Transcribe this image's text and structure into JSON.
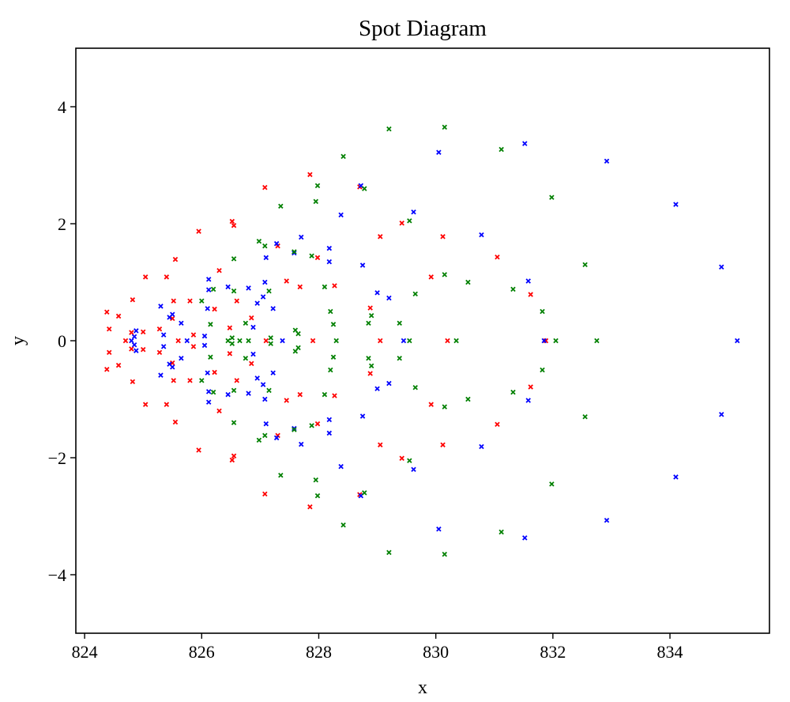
{
  "chart_data": {
    "type": "scatter",
    "title": "Spot Diagram",
    "xlabel": "x",
    "ylabel": "y",
    "xlim": [
      823.85,
      835.7
    ],
    "ylim": [
      -5,
      5
    ],
    "xticks": [
      824,
      826,
      828,
      830,
      832,
      834
    ],
    "yticks": [
      -4,
      -2,
      0,
      2,
      4
    ],
    "xtick_labels": [
      "824",
      "826",
      "828",
      "830",
      "832",
      "834"
    ],
    "ytick_labels": [
      "−4",
      "−2",
      "0",
      "2",
      "4"
    ],
    "grid": false,
    "legend": "none",
    "marker": "x",
    "series": [
      {
        "color": "#ff0000",
        "points": [
          [
            824.38,
            0.49
          ],
          [
            824.38,
            -0.49
          ],
          [
            824.42,
            0.2
          ],
          [
            824.42,
            -0.2
          ],
          [
            824.58,
            0.42
          ],
          [
            824.58,
            -0.42
          ],
          [
            824.7,
            0.0
          ],
          [
            824.8,
            0.14
          ],
          [
            824.8,
            -0.14
          ],
          [
            824.82,
            0.7
          ],
          [
            824.82,
            -0.7
          ],
          [
            825.0,
            0.15
          ],
          [
            825.0,
            -0.15
          ],
          [
            825.04,
            1.09
          ],
          [
            825.04,
            -1.09
          ],
          [
            825.28,
            0.2
          ],
          [
            825.28,
            -0.2
          ],
          [
            825.4,
            1.09
          ],
          [
            825.4,
            -1.09
          ],
          [
            825.5,
            0.38
          ],
          [
            825.5,
            -0.38
          ],
          [
            825.52,
            0.68
          ],
          [
            825.52,
            -0.68
          ],
          [
            825.55,
            1.39
          ],
          [
            825.55,
            -1.39
          ],
          [
            825.6,
            0.0
          ],
          [
            825.8,
            0.68
          ],
          [
            825.8,
            -0.68
          ],
          [
            825.86,
            0.1
          ],
          [
            825.86,
            -0.1
          ],
          [
            825.95,
            1.87
          ],
          [
            825.95,
            -1.87
          ],
          [
            826.22,
            0.54
          ],
          [
            826.22,
            -0.54
          ],
          [
            826.3,
            1.2
          ],
          [
            826.3,
            -1.2
          ],
          [
            826.48,
            0.22
          ],
          [
            826.48,
            -0.22
          ],
          [
            826.52,
            2.04
          ],
          [
            826.52,
            -2.04
          ],
          [
            826.55,
            1.97
          ],
          [
            826.55,
            -1.97
          ],
          [
            826.6,
            0.68
          ],
          [
            826.6,
            -0.68
          ],
          [
            826.85,
            0.39
          ],
          [
            826.85,
            -0.39
          ],
          [
            827.08,
            2.62
          ],
          [
            827.08,
            -2.62
          ],
          [
            827.1,
            0.0
          ],
          [
            827.3,
            1.62
          ],
          [
            827.3,
            -1.62
          ],
          [
            827.45,
            1.02
          ],
          [
            827.45,
            -1.02
          ],
          [
            827.68,
            0.92
          ],
          [
            827.68,
            -0.92
          ],
          [
            827.85,
            2.84
          ],
          [
            827.85,
            -2.84
          ],
          [
            827.9,
            0.0
          ],
          [
            827.98,
            1.42
          ],
          [
            827.98,
            -1.42
          ],
          [
            828.27,
            0.94
          ],
          [
            828.27,
            -0.94
          ],
          [
            828.7,
            2.63
          ],
          [
            828.7,
            -2.63
          ],
          [
            828.88,
            0.56
          ],
          [
            828.88,
            -0.56
          ],
          [
            829.05,
            0.0
          ],
          [
            829.05,
            1.78
          ],
          [
            829.05,
            -1.78
          ],
          [
            829.42,
            2.01
          ],
          [
            829.42,
            -2.01
          ],
          [
            829.92,
            1.09
          ],
          [
            829.92,
            -1.09
          ],
          [
            830.12,
            1.78
          ],
          [
            830.12,
            -1.78
          ],
          [
            830.2,
            0.0
          ],
          [
            831.05,
            1.43
          ],
          [
            831.05,
            -1.43
          ],
          [
            831.62,
            0.79
          ],
          [
            831.62,
            -0.79
          ],
          [
            831.88,
            0.0
          ]
        ]
      },
      {
        "color": "#0000ff",
        "points": [
          [
            824.8,
            0.0
          ],
          [
            824.85,
            0.07
          ],
          [
            824.85,
            -0.07
          ],
          [
            824.88,
            0.17
          ],
          [
            824.88,
            -0.17
          ],
          [
            825.3,
            0.59
          ],
          [
            825.3,
            -0.59
          ],
          [
            825.35,
            0.1
          ],
          [
            825.35,
            -0.1
          ],
          [
            825.45,
            0.4
          ],
          [
            825.45,
            -0.4
          ],
          [
            825.5,
            0.45
          ],
          [
            825.5,
            -0.45
          ],
          [
            825.65,
            0.3
          ],
          [
            825.65,
            -0.3
          ],
          [
            825.75,
            0.0
          ],
          [
            826.05,
            0.08
          ],
          [
            826.05,
            -0.08
          ],
          [
            826.1,
            0.55
          ],
          [
            826.1,
            -0.55
          ],
          [
            826.12,
            0.87
          ],
          [
            826.12,
            -0.87
          ],
          [
            826.12,
            1.05
          ],
          [
            826.12,
            -1.05
          ],
          [
            826.45,
            0.92
          ],
          [
            826.45,
            -0.92
          ],
          [
            826.8,
            0.9
          ],
          [
            826.8,
            -0.9
          ],
          [
            826.88,
            0.23
          ],
          [
            826.88,
            -0.23
          ],
          [
            826.95,
            0.64
          ],
          [
            826.95,
            -0.64
          ],
          [
            827.05,
            0.75
          ],
          [
            827.05,
            -0.75
          ],
          [
            827.08,
            1.0
          ],
          [
            827.08,
            -1.0
          ],
          [
            827.1,
            1.42
          ],
          [
            827.1,
            -1.42
          ],
          [
            827.22,
            0.55
          ],
          [
            827.22,
            -0.55
          ],
          [
            827.28,
            1.66
          ],
          [
            827.28,
            -1.66
          ],
          [
            827.38,
            0.0
          ],
          [
            827.58,
            1.5
          ],
          [
            827.58,
            -1.5
          ],
          [
            827.7,
            1.77
          ],
          [
            827.7,
            -1.77
          ],
          [
            828.18,
            1.35
          ],
          [
            828.18,
            -1.35
          ],
          [
            828.18,
            1.58
          ],
          [
            828.18,
            -1.58
          ],
          [
            828.38,
            2.15
          ],
          [
            828.38,
            -2.15
          ],
          [
            828.72,
            2.65
          ],
          [
            828.72,
            -2.65
          ],
          [
            828.75,
            1.29
          ],
          [
            828.75,
            -1.29
          ],
          [
            829.0,
            0.82
          ],
          [
            829.0,
            -0.82
          ],
          [
            829.2,
            0.73
          ],
          [
            829.2,
            -0.73
          ],
          [
            829.45,
            0.0
          ],
          [
            829.62,
            2.2
          ],
          [
            829.62,
            -2.2
          ],
          [
            830.05,
            3.22
          ],
          [
            830.05,
            -3.22
          ],
          [
            830.78,
            1.81
          ],
          [
            830.78,
            -1.81
          ],
          [
            831.52,
            3.37
          ],
          [
            831.52,
            -3.37
          ],
          [
            831.58,
            1.02
          ],
          [
            831.58,
            -1.02
          ],
          [
            831.85,
            0.0
          ],
          [
            832.92,
            3.07
          ],
          [
            832.92,
            -3.07
          ],
          [
            834.1,
            2.33
          ],
          [
            834.1,
            -2.33
          ],
          [
            834.88,
            1.26
          ],
          [
            834.88,
            -1.26
          ],
          [
            835.15,
            0.0
          ]
        ]
      },
      {
        "color": "#008000",
        "points": [
          [
            826.0,
            0.68
          ],
          [
            826.0,
            -0.68
          ],
          [
            826.15,
            0.28
          ],
          [
            826.15,
            -0.28
          ],
          [
            826.2,
            0.88
          ],
          [
            826.2,
            -0.88
          ],
          [
            826.45,
            0.0
          ],
          [
            826.52,
            0.05
          ],
          [
            826.52,
            -0.05
          ],
          [
            826.55,
            1.4
          ],
          [
            826.55,
            -1.4
          ],
          [
            826.55,
            0.85
          ],
          [
            826.55,
            -0.85
          ],
          [
            826.65,
            0.0
          ],
          [
            826.75,
            0.3
          ],
          [
            826.75,
            -0.3
          ],
          [
            826.8,
            0.0
          ],
          [
            826.98,
            1.7
          ],
          [
            826.98,
            -1.7
          ],
          [
            827.08,
            1.62
          ],
          [
            827.08,
            -1.62
          ],
          [
            827.15,
            0.85
          ],
          [
            827.15,
            -0.85
          ],
          [
            827.18,
            0.05
          ],
          [
            827.18,
            -0.05
          ],
          [
            827.35,
            2.3
          ],
          [
            827.35,
            -2.3
          ],
          [
            827.58,
            1.52
          ],
          [
            827.58,
            -1.52
          ],
          [
            827.6,
            0.18
          ],
          [
            827.6,
            -0.18
          ],
          [
            827.65,
            0.12
          ],
          [
            827.65,
            -0.12
          ],
          [
            827.88,
            1.45
          ],
          [
            827.88,
            -1.45
          ],
          [
            827.95,
            2.38
          ],
          [
            827.95,
            -2.38
          ],
          [
            827.98,
            2.65
          ],
          [
            827.98,
            -2.65
          ],
          [
            828.1,
            0.92
          ],
          [
            828.1,
            -0.92
          ],
          [
            828.2,
            0.5
          ],
          [
            828.2,
            -0.5
          ],
          [
            828.25,
            0.28
          ],
          [
            828.25,
            -0.28
          ],
          [
            828.3,
            0.0
          ],
          [
            828.42,
            3.15
          ],
          [
            828.42,
            -3.15
          ],
          [
            828.78,
            2.6
          ],
          [
            828.78,
            -2.6
          ],
          [
            828.85,
            0.3
          ],
          [
            828.85,
            -0.3
          ],
          [
            828.9,
            0.43
          ],
          [
            828.9,
            -0.43
          ],
          [
            829.2,
            3.62
          ],
          [
            829.2,
            -3.62
          ],
          [
            829.38,
            0.3
          ],
          [
            829.38,
            -0.3
          ],
          [
            829.55,
            2.05
          ],
          [
            829.55,
            -2.05
          ],
          [
            829.55,
            0.0
          ],
          [
            829.65,
            0.8
          ],
          [
            829.65,
            -0.8
          ],
          [
            830.15,
            3.65
          ],
          [
            830.15,
            -3.65
          ],
          [
            830.15,
            1.13
          ],
          [
            830.15,
            -1.13
          ],
          [
            830.35,
            0.0
          ],
          [
            830.55,
            1.0
          ],
          [
            830.55,
            -1.0
          ],
          [
            831.12,
            3.27
          ],
          [
            831.12,
            -3.27
          ],
          [
            831.32,
            0.88
          ],
          [
            831.32,
            -0.88
          ],
          [
            831.82,
            0.5
          ],
          [
            831.82,
            -0.5
          ],
          [
            831.98,
            2.45
          ],
          [
            831.98,
            -2.45
          ],
          [
            832.05,
            0.0
          ],
          [
            832.55,
            1.3
          ],
          [
            832.55,
            -1.3
          ],
          [
            832.75,
            0.0
          ]
        ]
      }
    ]
  }
}
